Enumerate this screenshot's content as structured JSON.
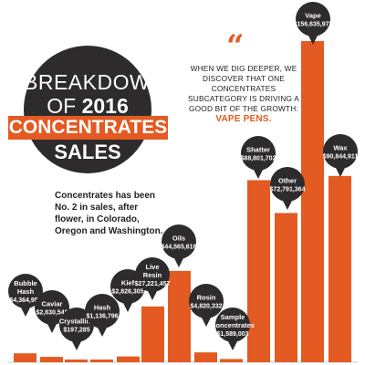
{
  "title": {
    "line1": "BREAKDOWN",
    "line2_prefix": "OF",
    "line2_year": "2016",
    "line3": "CONCENTRATES",
    "line4": "SALES"
  },
  "intro": "Concentrates has been No. 2 in sales, after flower, in Colorado, Oregon and Washington.",
  "quote": {
    "mark": "“",
    "text": "WHEN WE DIG DEEPER, WE DISCOVER THAT ONE CONCENTRATES SUBCATEGORY IS DRIVING A GOOD BIT OF THE GROWTH:",
    "highlight": "VAPE PENS."
  },
  "colors": {
    "bar": "#e35a22",
    "pin": "#2e2b2c",
    "text": "#222222"
  },
  "chart_data": {
    "type": "bar",
    "title": "BREAKDOWN OF 2016 CONCENTRATES SALES",
    "categories": [
      "Bubble Hash",
      "Caviar",
      "Crystalline",
      "Hash",
      "Kief",
      "Live Resin",
      "Oils",
      "Rosin",
      "Sample Concentrates",
      "Shatter",
      "Other",
      "Vape",
      "Wax"
    ],
    "values": [
      4364952,
      2630548,
      197285,
      1136796,
      2826305,
      27221457,
      44565616,
      4820332,
      1589003,
      88801702,
      72791364,
      156635977,
      90844911
    ],
    "value_labels": [
      "$4,364,952",
      "$2,630,548",
      "$197,285",
      "$1,136,796",
      "$2,826,305",
      "$27,221,457",
      "$44,565,616",
      "$4,820,332",
      "$1,589,003",
      "$88,801,702",
      "$72,791,364",
      "$156,635,977",
      "$90,844,911"
    ],
    "xlabel": "",
    "ylabel": "",
    "ylim": [
      0,
      156635977
    ],
    "grid": false,
    "legend": "none"
  }
}
